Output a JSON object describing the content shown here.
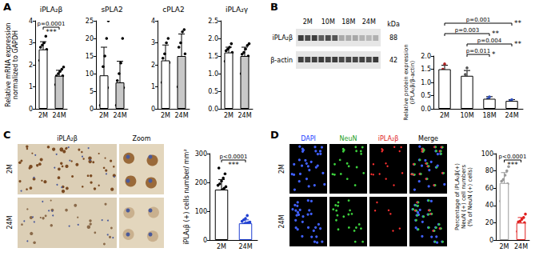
{
  "panel_labels": [
    "A",
    "B",
    "C",
    "D"
  ],
  "blot": {
    "lanes": [
      "2M",
      "10M",
      "18M",
      "24M"
    ],
    "rows": [
      "iPLA₂β",
      "β-actin"
    ],
    "unit": "kDa",
    "sizes": [
      88,
      42
    ]
  },
  "ihc": {
    "header": "iPLA₂β",
    "zoom": "Zoom",
    "rows": [
      "2M",
      "24M"
    ]
  },
  "fluorescence": {
    "channels": [
      "DAPI",
      "NeuN",
      "iPLA₂β",
      "Merge"
    ],
    "rows": [
      "2M",
      "24M"
    ]
  },
  "chart_data": [
    {
      "type": "bar",
      "title": "iPLA₂β",
      "y_label": [
        "Relative mRNA expression",
        "normalized to GAPDH"
      ],
      "categories": [
        "2M",
        "24M"
      ],
      "values": [
        2.7,
        1.5
      ],
      "errors": [
        0.35,
        0.25
      ],
      "points": [
        [
          2.2,
          2.3,
          2.5,
          2.6,
          2.7,
          2.8,
          2.9,
          3.0,
          3.3
        ],
        [
          1.1,
          1.2,
          1.3,
          1.4,
          1.5,
          1.5,
          1.6,
          1.7,
          1.8,
          1.9
        ]
      ],
      "colors": [
        "#ffffff",
        "#c8c8c8"
      ],
      "edge_colors": [
        "#000000",
        "#000000"
      ],
      "point_colors": [
        "#000000",
        "#000000"
      ],
      "ylim": [
        0,
        4
      ],
      "yticks": [
        0,
        1,
        2,
        3,
        4
      ],
      "grid": false,
      "comparisons": [
        {
          "between": [
            "2M",
            "24M"
          ],
          "label": "p=0.0001",
          "stars": "***"
        }
      ]
    },
    {
      "type": "bar",
      "title": "sPLA2",
      "categories": [
        "2M",
        "24M"
      ],
      "values": [
        9.5,
        7.5
      ],
      "errors": [
        8,
        6
      ],
      "points": [
        [
          1,
          2,
          3,
          4,
          6,
          8,
          12,
          15,
          20,
          25
        ],
        [
          1,
          2,
          3,
          4,
          6,
          8,
          10,
          13,
          20
        ]
      ],
      "colors": [
        "#ffffff",
        "#c8c8c8"
      ],
      "edge_colors": [
        "#000000",
        "#000000"
      ],
      "point_colors": [
        "#000000",
        "#000000"
      ],
      "ylim": [
        0,
        25
      ],
      "yticks": [
        0,
        5,
        10,
        15,
        20,
        25
      ],
      "grid": false
    },
    {
      "type": "bar",
      "title": "cPLA2",
      "categories": [
        "2M",
        "24M"
      ],
      "values": [
        2.2,
        2.4
      ],
      "errors": [
        0.7,
        1.0
      ],
      "points": [
        [
          1.2,
          1.5,
          1.8,
          2.0,
          2.1,
          2.3,
          2.5,
          3.0,
          3.2
        ],
        [
          1.0,
          1.4,
          1.8,
          2.2,
          2.5,
          2.8,
          3.0,
          3.5,
          3.6
        ]
      ],
      "colors": [
        "#ffffff",
        "#c8c8c8"
      ],
      "edge_colors": [
        "#000000",
        "#000000"
      ],
      "point_colors": [
        "#000000",
        "#000000"
      ],
      "ylim": [
        0,
        4
      ],
      "yticks": [
        0,
        1,
        2,
        3,
        4
      ],
      "grid": false
    },
    {
      "type": "bar",
      "title": "iPLA₂γ",
      "categories": [
        "2M",
        "24M"
      ],
      "values": [
        1.6,
        1.5
      ],
      "errors": [
        0.15,
        0.25
      ],
      "points": [
        [
          1.35,
          1.45,
          1.5,
          1.55,
          1.6,
          1.65,
          1.7,
          1.75,
          1.85
        ],
        [
          1.0,
          1.25,
          1.35,
          1.45,
          1.5,
          1.55,
          1.6,
          1.7,
          1.8,
          1.85
        ]
      ],
      "colors": [
        "#ffffff",
        "#c8c8c8"
      ],
      "edge_colors": [
        "#000000",
        "#000000"
      ],
      "point_colors": [
        "#000000",
        "#000000"
      ],
      "ylim": [
        0,
        2.5
      ],
      "yticks": [
        {
          "value": 0,
          "label": "0.0"
        },
        0.5,
        {
          "value": 1,
          "label": "1.0"
        },
        1.5,
        {
          "value": 2,
          "label": "2.0"
        },
        2.5
      ],
      "grid": false
    },
    {
      "type": "bar",
      "y_label": [
        "Relative protein expression",
        "(iPLA₂β/β-actin)"
      ],
      "categories": [
        "2M",
        "10M",
        "18M",
        "24M"
      ],
      "values": [
        1.5,
        1.25,
        0.38,
        0.3
      ],
      "errors": [
        0.15,
        0.2,
        0.08,
        0.05
      ],
      "points": [
        [
          1.3,
          1.5,
          1.7
        ],
        [
          0.9,
          1.3,
          1.55
        ],
        [
          0.3,
          0.38,
          0.45
        ],
        [
          0.25,
          0.3,
          0.35
        ]
      ],
      "colors": [
        "#ffffff",
        "#ffffff",
        "#ffffff",
        "#ffffff"
      ],
      "edge_colors": [
        "#000000",
        "#000000",
        "#000000",
        "#000000"
      ],
      "point_colors": [
        "#b22222",
        "#555555",
        "#3050c0",
        "#3050c0"
      ],
      "ylim": [
        0,
        2
      ],
      "yticks": [
        {
          "value": 0,
          "label": "0.0"
        },
        0.5,
        {
          "value": 1,
          "label": "1.0"
        },
        1.5,
        {
          "value": 2,
          "label": "2.0"
        }
      ],
      "grid": false,
      "comparisons": [
        {
          "between": [
            "2M",
            "24M"
          ],
          "label": "p=0.001",
          "stars": "**"
        },
        {
          "between": [
            "2M",
            "18M"
          ],
          "label": "p=0.003",
          "stars": "**"
        },
        {
          "between": [
            "10M",
            "24M"
          ],
          "label": "p=0.004",
          "stars": "**"
        },
        {
          "between": [
            "10M",
            "18M"
          ],
          "label": "p=0.011",
          "stars": "*"
        }
      ]
    },
    {
      "type": "bar",
      "y_label": [
        "iPLA₂β (+) cells number/ mm²"
      ],
      "categories": [
        "2M",
        "24M"
      ],
      "values": [
        175,
        58
      ],
      "errors": [
        35,
        12
      ],
      "points": [
        [
          110,
          130,
          140,
          150,
          160,
          165,
          170,
          175,
          180,
          185,
          190,
          195,
          205,
          215,
          230,
          250
        ],
        [
          40,
          45,
          48,
          50,
          52,
          55,
          57,
          58,
          60,
          62,
          65,
          70,
          75,
          85
        ]
      ],
      "colors": [
        "#ffffff",
        "#ffffff"
      ],
      "edge_colors": [
        "#000000",
        "#1f3fd1"
      ],
      "point_colors": [
        "#000000",
        "#1f3fd1"
      ],
      "ylim": [
        0,
        300
      ],
      "yticks": [
        0,
        100,
        200,
        300
      ],
      "grid": false,
      "comparisons": [
        {
          "between": [
            "2M",
            "24M"
          ],
          "label": "p<0.0001",
          "stars": "***"
        }
      ]
    },
    {
      "type": "bar",
      "y_label": [
        "Percentage of iPLA₂β(+)",
        "NeuN (+) cell numbers",
        "(% of NeuN (+) cells)"
      ],
      "categories": [
        "2M",
        "24M"
      ],
      "values": [
        66,
        20
      ],
      "errors": [
        12,
        6
      ],
      "points": [
        [
          45,
          55,
          60,
          62,
          65,
          68,
          70,
          75,
          80,
          85
        ],
        [
          10,
          14,
          16,
          18,
          20,
          21,
          22,
          24,
          26,
          30
        ]
      ],
      "colors": [
        "#ffffff",
        "#ffffff"
      ],
      "edge_colors": [
        "#999999",
        "#e02020"
      ],
      "point_colors": [
        "#999999",
        "#e02020"
      ],
      "ylim": [
        0,
        100
      ],
      "yticks": [
        0,
        20,
        40,
        60,
        80,
        100
      ],
      "grid": false,
      "comparisons": [
        {
          "between": [
            "2M",
            "24M"
          ],
          "label": "p<0.0001",
          "stars": "***"
        }
      ]
    }
  ]
}
